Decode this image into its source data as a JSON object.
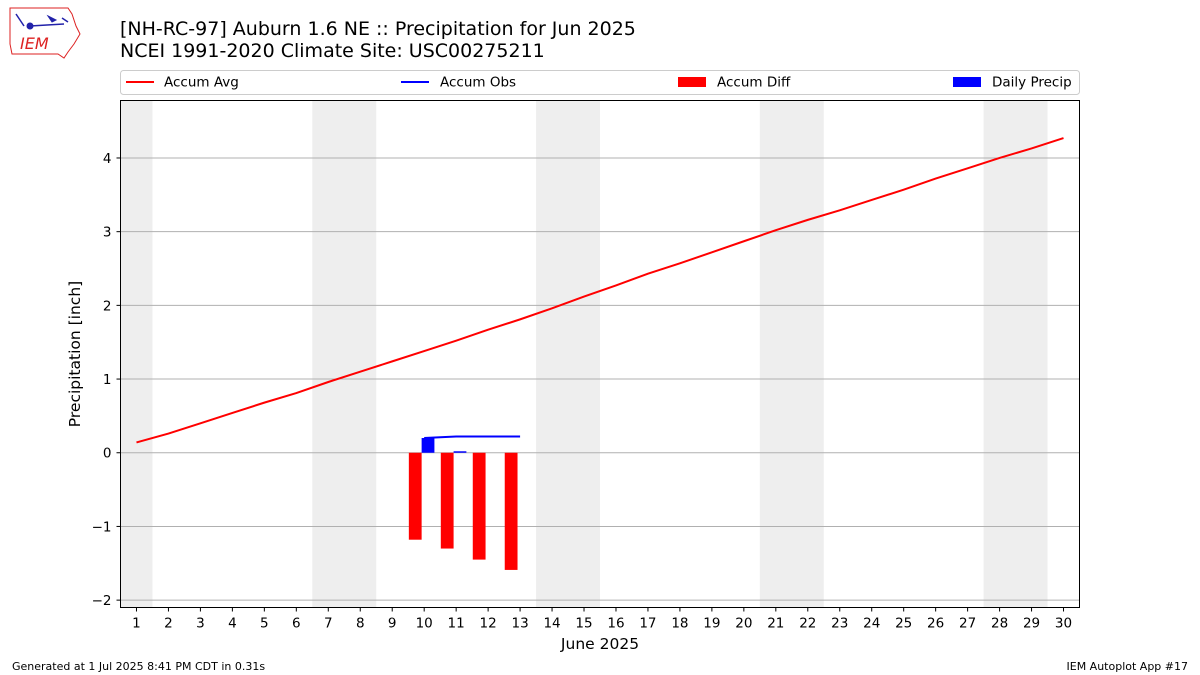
{
  "header": {
    "title_line1": "[NH-RC-97] Auburn 1.6 NE :: Precipitation for Jun 2025",
    "title_line2": "NCEI 1991-2020 Climate Site: USC00275211"
  },
  "logo": {
    "text": "IEM"
  },
  "footer": {
    "left": "Generated at 1 Jul 2025 8:41 PM CDT in 0.31s",
    "right": "IEM Autoplot App #17"
  },
  "colors": {
    "avg": "#ff0000",
    "obs": "#0000ff",
    "diff": "#ff0000",
    "daily": "#0000ff",
    "weekend": "#eeeeee",
    "grid": "#b0b0b0"
  },
  "chart_data": {
    "type": "line",
    "xlabel": "June 2025",
    "ylabel": "Precipitation [inch]",
    "xlim": [
      0.5,
      30.5
    ],
    "ylim": [
      -2.1,
      4.78
    ],
    "xticks": [
      1,
      2,
      3,
      4,
      5,
      6,
      7,
      8,
      9,
      10,
      11,
      12,
      13,
      14,
      15,
      16,
      17,
      18,
      19,
      20,
      21,
      22,
      23,
      24,
      25,
      26,
      27,
      28,
      29,
      30
    ],
    "yticks": [
      -2,
      -1,
      0,
      1,
      2,
      3,
      4
    ],
    "ytick_labels": [
      "−2",
      "−1",
      "0",
      "1",
      "2",
      "3",
      "4"
    ],
    "grid": "horizontal",
    "legend_position": "top, above plot",
    "weekend_bands": [
      [
        0.5,
        1.5
      ],
      [
        6.5,
        8.5
      ],
      [
        13.5,
        15.5
      ],
      [
        20.5,
        22.5
      ],
      [
        27.5,
        29.5
      ]
    ],
    "series": [
      {
        "name": "Accum Avg",
        "type": "line",
        "x": [
          1,
          2,
          3,
          4,
          5,
          6,
          7,
          8,
          9,
          10,
          11,
          12,
          13,
          14,
          15,
          16,
          17,
          18,
          19,
          20,
          21,
          22,
          23,
          24,
          25,
          26,
          27,
          28,
          29,
          30
        ],
        "values": [
          0.14,
          0.26,
          0.4,
          0.54,
          0.68,
          0.81,
          0.96,
          1.1,
          1.24,
          1.38,
          1.52,
          1.67,
          1.81,
          1.96,
          2.12,
          2.27,
          2.43,
          2.57,
          2.72,
          2.87,
          3.02,
          3.16,
          3.29,
          3.43,
          3.57,
          3.72,
          3.86,
          4.0,
          4.13,
          4.27
        ]
      },
      {
        "name": "Accum Obs",
        "type": "step",
        "x": [
          10,
          11,
          12,
          13
        ],
        "values": [
          0.2,
          0.22,
          0.22,
          0.22
        ]
      },
      {
        "name": "Accum Diff",
        "type": "bar",
        "x": [
          10,
          11,
          12,
          13
        ],
        "values": [
          -1.18,
          -1.3,
          -1.45,
          -1.59
        ]
      },
      {
        "name": "Daily Precip",
        "type": "bar",
        "x": [
          10,
          11,
          12,
          13
        ],
        "values": [
          0.2,
          0.02,
          0.0,
          0.0
        ]
      }
    ]
  }
}
